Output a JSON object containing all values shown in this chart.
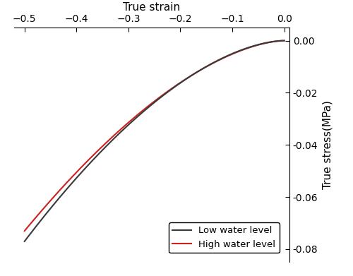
{
  "xlabel": "True strain",
  "ylabel": "True stress(MPa)",
  "xlim": [
    -0.52,
    0.01
  ],
  "ylim": [
    -0.085,
    0.005
  ],
  "xticks": [
    -0.5,
    -0.4,
    -0.3,
    -0.2,
    -0.1,
    0.0
  ],
  "yticks": [
    0.0,
    -0.02,
    -0.04,
    -0.06,
    -0.08
  ],
  "low_color": "#3a3a3a",
  "high_color": "#cc2222",
  "low_label": "Low water level",
  "high_label": "High water level",
  "line_width": 1.5,
  "background_color": "#ffffff",
  "legend_fontsize": 9.5,
  "axis_fontsize": 11,
  "tick_fontsize": 10,
  "n_low": 1.7,
  "n_high": 1.65,
  "C_low": 0.077,
  "C_high": 0.073
}
